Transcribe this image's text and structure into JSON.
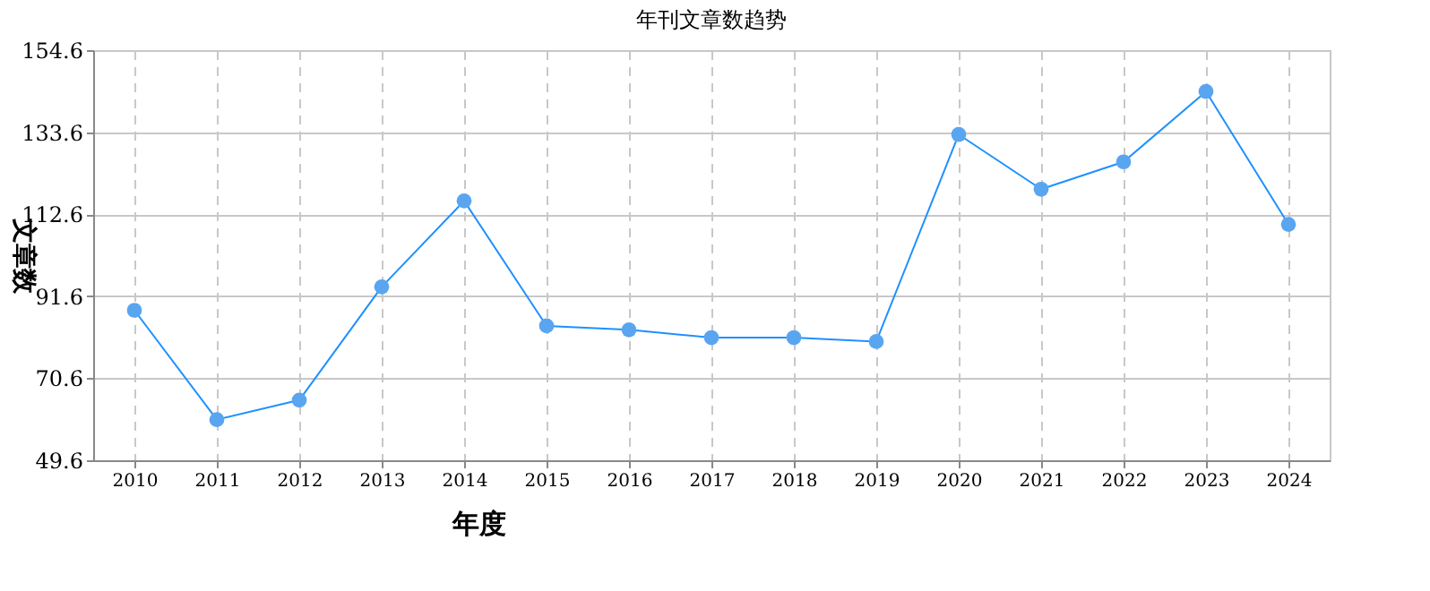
{
  "chart_data": {
    "type": "line",
    "title": "年刊文章数趋势",
    "xlabel": "年度",
    "ylabel": "文章数",
    "categories": [
      "2010",
      "2011",
      "2012",
      "2013",
      "2014",
      "2015",
      "2016",
      "2017",
      "2018",
      "2019",
      "2020",
      "2021",
      "2022",
      "2023",
      "2024"
    ],
    "series": [
      {
        "color": "#1e90ff",
        "values": [
          88,
          60,
          65,
          94,
          116,
          84,
          83,
          81,
          81,
          80,
          133,
          119,
          126,
          144,
          110
        ]
      }
    ],
    "ylim": [
      49.6,
      154.6
    ],
    "yticks": [
      49.6,
      70.6,
      91.6,
      112.6,
      133.6,
      154.6
    ],
    "grid": true,
    "marker": "circle",
    "line_style": "solid"
  }
}
